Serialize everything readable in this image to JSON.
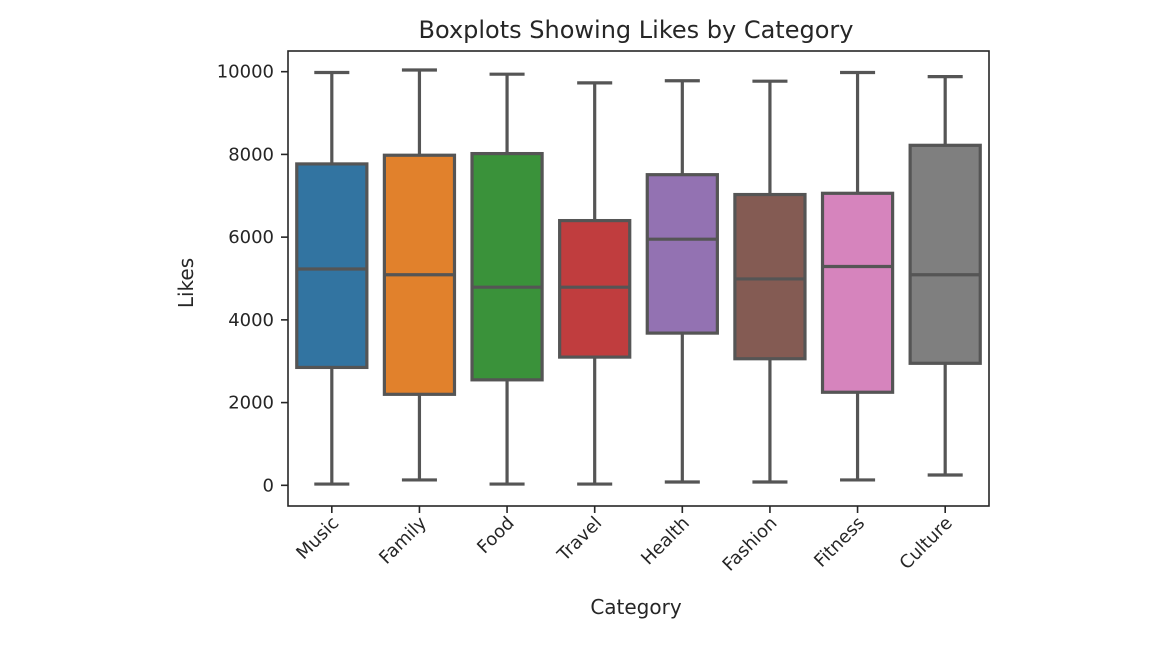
{
  "chart_data": {
    "type": "boxplot",
    "title": "Boxplots Showing Likes by Category",
    "xlabel": "Category",
    "ylabel": "Likes",
    "ylim": [
      -500,
      10500
    ],
    "yticks": [
      0,
      2000,
      4000,
      6000,
      8000,
      10000
    ],
    "ytick_labels": [
      "0",
      "2000",
      "4000",
      "6000",
      "8000",
      "10000"
    ],
    "grid": false,
    "legend": "none",
    "categories": [
      "Music",
      "Family",
      "Food",
      "Travel",
      "Health",
      "Fashion",
      "Fitness",
      "Culture"
    ],
    "colors": [
      "#3274a1",
      "#e1812c",
      "#3a923a",
      "#c03d3e",
      "#9372b2",
      "#845b53",
      "#d684bd",
      "#7f7f7f"
    ],
    "boxes": [
      {
        "category": "Music",
        "min": 30,
        "q1": 2850,
        "median": 5230,
        "q3": 7770,
        "max": 9980
      },
      {
        "category": "Family",
        "min": 130,
        "q1": 2200,
        "median": 5090,
        "q3": 7980,
        "max": 10040
      },
      {
        "category": "Food",
        "min": 30,
        "q1": 2550,
        "median": 4790,
        "q3": 8020,
        "max": 9940
      },
      {
        "category": "Travel",
        "min": 30,
        "q1": 3100,
        "median": 4790,
        "q3": 6400,
        "max": 9730
      },
      {
        "category": "Health",
        "min": 80,
        "q1": 3680,
        "median": 5950,
        "q3": 7510,
        "max": 9780
      },
      {
        "category": "Fashion",
        "min": 80,
        "q1": 3060,
        "median": 4990,
        "q3": 7030,
        "max": 9770
      },
      {
        "category": "Fitness",
        "min": 130,
        "q1": 2250,
        "median": 5290,
        "q3": 7060,
        "max": 9980
      },
      {
        "category": "Culture",
        "min": 250,
        "q1": 2950,
        "median": 5090,
        "q3": 8220,
        "max": 9880
      }
    ]
  }
}
